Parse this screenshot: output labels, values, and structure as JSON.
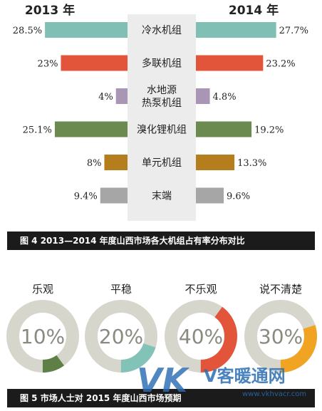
{
  "figure4": {
    "caption": "图 4   2013—2014 年度山西市场各大机组占有率分布对比",
    "chart_data": {
      "type": "bar",
      "subtype": "diverging-horizontal",
      "left_header": "2013 年",
      "right_header": "2014 年",
      "categories": [
        "冷水机组",
        "多联机组",
        "水地源\n热泵机组",
        "溴化锂机组",
        "单元机组",
        "末端"
      ],
      "series": [
        {
          "name": "2013 年",
          "values": [
            28.5,
            23,
            4,
            25.1,
            8,
            9.4
          ],
          "labels": [
            "28.5%",
            "23%",
            "4%",
            "25.1%",
            "8%",
            "9.4%"
          ]
        },
        {
          "name": "2014 年",
          "values": [
            27.7,
            23.2,
            4.8,
            19.2,
            13.3,
            9.6
          ],
          "labels": [
            "27.7%",
            "23.2%",
            "4.8%",
            "19.2%",
            "13.3%",
            "9.6%"
          ]
        }
      ],
      "colors": [
        "#7fbfb4",
        "#e2553a",
        "#a996b4",
        "#6a8a4f",
        "#b57e1c",
        "#a6a6a6"
      ],
      "xlim": [
        0,
        30
      ]
    }
  },
  "figure5": {
    "caption": "图 5   市场人士对 2015 年度山西市场预期",
    "chart_data": {
      "type": "pie",
      "subtype": "donut",
      "categories": [
        "乐观",
        "平稳",
        "不乐观",
        "说不清楚"
      ],
      "values": [
        10,
        20,
        40,
        30
      ],
      "labels": [
        "10%",
        "20%",
        "40%",
        "30%"
      ],
      "colors": [
        "#5e7f45",
        "#82c2b7",
        "#e2553a",
        "#f0a422"
      ],
      "track_color": "#d7d6cc"
    }
  },
  "watermark": {
    "logo": "VK",
    "brand": "V客暖通网",
    "url": "www.vkhvacr.com"
  }
}
